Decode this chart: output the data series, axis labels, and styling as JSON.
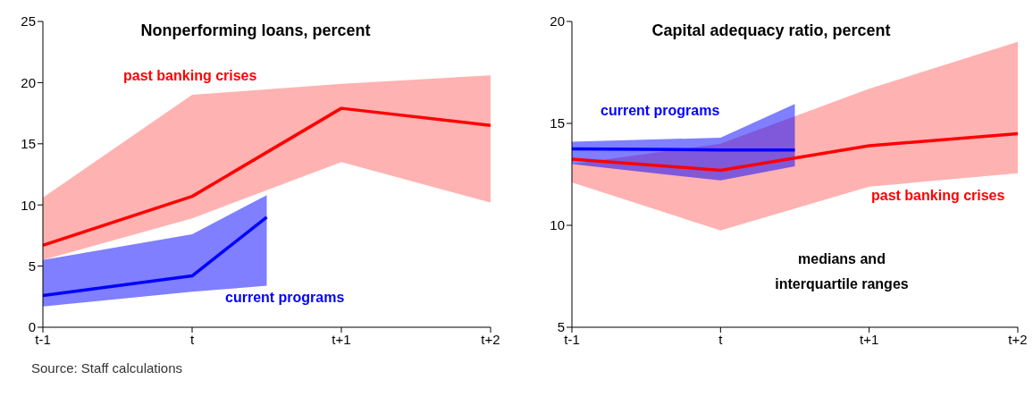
{
  "chart_data": [
    {
      "type": "line",
      "title": "Nonperforming loans, percent",
      "categories": [
        "t-1",
        null,
        "t",
        null,
        "t+1",
        null,
        "t+2"
      ],
      "ylim": [
        0,
        25
      ],
      "yticks": [
        0,
        5,
        10,
        15,
        20,
        25
      ],
      "grid": false,
      "legend": false,
      "marker": "none",
      "annotations": [
        "Source: Staff calculations"
      ],
      "series": [
        {
          "name": "past banking crises",
          "color": "#ff0000",
          "values": [
            6.7,
            null,
            10.7,
            null,
            17.9,
            null,
            16.5
          ],
          "lower": [
            5.5,
            null,
            8.9,
            null,
            13.5,
            null,
            10.2
          ],
          "upper": [
            10.6,
            null,
            19.0,
            null,
            19.9,
            null,
            20.6
          ]
        },
        {
          "name": "current programs",
          "color": "#0000ff",
          "values": [
            2.6,
            null,
            4.2,
            9.0,
            null,
            null,
            null
          ],
          "lower": [
            1.7,
            null,
            2.9,
            3.4,
            null,
            null,
            null
          ],
          "upper": [
            5.5,
            null,
            7.6,
            10.8,
            null,
            null,
            null
          ]
        }
      ]
    },
    {
      "type": "line",
      "title": "Capital adequacy ratio, percent",
      "categories": [
        "t-1",
        null,
        "t",
        null,
        "t+1",
        null,
        "t+2"
      ],
      "ylim": [
        5,
        20
      ],
      "yticks": [
        5,
        10,
        15,
        20
      ],
      "grid": false,
      "legend": false,
      "marker": "none",
      "annotations": [
        "medians and interquartile ranges"
      ],
      "series": [
        {
          "name": "past banking crises",
          "color": "#ff0000",
          "values": [
            13.25,
            null,
            12.7,
            null,
            13.9,
            null,
            14.5
          ],
          "lower": [
            12.1,
            null,
            9.75,
            null,
            11.9,
            null,
            12.55
          ],
          "upper": [
            13.0,
            null,
            14.0,
            null,
            16.7,
            null,
            19.0
          ]
        },
        {
          "name": "current programs",
          "color": "#0000ff",
          "values": [
            13.75,
            null,
            13.7,
            13.7,
            null,
            null,
            null
          ],
          "lower": [
            13.0,
            null,
            12.2,
            12.9,
            null,
            null,
            null
          ],
          "upper": [
            14.1,
            null,
            14.3,
            15.95,
            null,
            null,
            null
          ]
        }
      ]
    }
  ]
}
